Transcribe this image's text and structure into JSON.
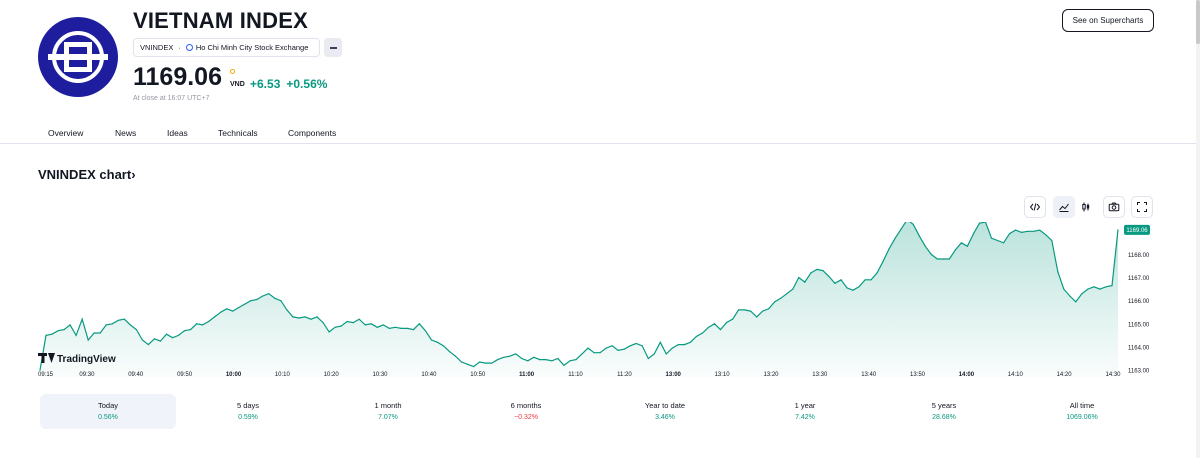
{
  "header": {
    "title": "VIETNAM INDEX",
    "symbol": "VNINDEX",
    "separator": "·",
    "exchange": "Ho Chi Minh City Stock Exchange",
    "price": "1169.06",
    "currency": "VND",
    "change_abs": "+6.53",
    "change_pct": "+0.56%",
    "close_time": "At close at 16:07 UTC+7",
    "logo_icon": "hose-logo-icon",
    "supercharts_label": "See on Supercharts"
  },
  "tabs": [
    {
      "label": "Overview",
      "active": true
    },
    {
      "label": "News",
      "active": false
    },
    {
      "label": "Ideas",
      "active": false
    },
    {
      "label": "Technicals",
      "active": false
    },
    {
      "label": "Components",
      "active": false
    }
  ],
  "chart_section": {
    "title": "VNINDEX chart",
    "arrow": "›",
    "watermark": "TradingView",
    "tools": [
      "embed-code-icon",
      "line-chart-icon",
      "candles-icon",
      "camera-icon",
      "fullscreen-icon"
    ]
  },
  "colors": {
    "accent": "#2962ff",
    "positive": "#089981",
    "negative": "#f23645",
    "logo_bg": "#1d1d9e"
  },
  "chart_data": {
    "type": "area",
    "title": "",
    "xlabel": "",
    "ylabel": "",
    "x_ticks": [
      "09:15",
      "09:30",
      "09:40",
      "09:50",
      "10:00",
      "10:10",
      "10:20",
      "10:30",
      "10:40",
      "10:50",
      "11:00",
      "11:10",
      "11:20",
      "13:00",
      "13:10",
      "13:20",
      "13:30",
      "13:40",
      "13:50",
      "14:00",
      "14:10",
      "14:20",
      "14:30"
    ],
    "y_ticks": [
      "1163.00",
      "1164.00",
      "1165.00",
      "1166.00",
      "1167.00",
      "1168.00"
    ],
    "ylim": [
      1162.7,
      1169.4
    ],
    "last_value_label": "1169.06",
    "series": [
      {
        "values": [
          1163.0,
          1164.5,
          1164.55,
          1164.7,
          1164.75,
          1164.95,
          1164.5,
          1165.2,
          1164.3,
          1164.6,
          1164.6,
          1164.95,
          1165.0,
          1165.15,
          1165.2,
          1164.95,
          1164.75,
          1164.3,
          1164.1,
          1164.35,
          1164.25,
          1164.55,
          1164.4,
          1164.5,
          1164.7,
          1164.75,
          1165.0,
          1164.95,
          1165.1,
          1165.3,
          1165.5,
          1165.65,
          1165.55,
          1165.7,
          1165.85,
          1166.0,
          1166.05,
          1166.2,
          1166.3,
          1166.1,
          1166.0,
          1165.6,
          1165.3,
          1165.25,
          1165.3,
          1165.2,
          1165.3,
          1165.05,
          1164.65,
          1164.85,
          1164.9,
          1165.1,
          1165.05,
          1165.2,
          1164.95,
          1165.0,
          1164.85,
          1164.95,
          1164.8,
          1164.85,
          1164.8,
          1164.8,
          1164.75,
          1165.0,
          1164.7,
          1164.3,
          1164.2,
          1164.05,
          1163.8,
          1163.6,
          1163.35,
          1163.25,
          1163.15,
          1163.35,
          1163.3,
          1163.3,
          1163.45,
          1163.55,
          1163.6,
          1163.7,
          1163.5,
          1163.4,
          1163.55,
          1163.45,
          1163.45,
          1163.4,
          1163.5,
          1163.2,
          1163.4,
          1163.45,
          1163.7,
          1163.95,
          1163.75,
          1163.75,
          1163.95,
          1164.05,
          1163.85,
          1163.9,
          1164.05,
          1164.15,
          1164.05,
          1163.5,
          1163.7,
          1164.2,
          1163.7,
          1163.95,
          1164.1,
          1164.1,
          1164.2,
          1164.45,
          1164.6,
          1164.85,
          1165.0,
          1164.75,
          1165.05,
          1165.2,
          1165.6,
          1165.6,
          1165.55,
          1165.3,
          1165.55,
          1165.65,
          1165.95,
          1166.1,
          1166.3,
          1166.5,
          1167.0,
          1166.8,
          1167.2,
          1167.35,
          1167.3,
          1167.05,
          1166.75,
          1166.9,
          1166.55,
          1166.45,
          1166.6,
          1166.9,
          1166.9,
          1167.2,
          1167.7,
          1168.25,
          1168.7,
          1169.1,
          1169.5,
          1169.3,
          1168.8,
          1168.35,
          1168.0,
          1167.8,
          1167.8,
          1167.8,
          1168.2,
          1168.5,
          1168.35,
          1168.9,
          1169.35,
          1169.4,
          1168.7,
          1168.6,
          1168.5,
          1168.9,
          1169.05,
          1168.95,
          1169.0,
          1169.0,
          1169.05,
          1168.85,
          1168.6,
          1167.25,
          1166.5,
          1166.2,
          1165.95,
          1166.3,
          1166.5,
          1166.6,
          1166.5,
          1166.6,
          1166.65,
          1169.06
        ]
      }
    ]
  },
  "ranges": [
    {
      "label": "Today",
      "value": "0.56%",
      "direction": "positive",
      "active": true
    },
    {
      "label": "5 days",
      "value": "0.59%",
      "direction": "positive",
      "active": false
    },
    {
      "label": "1 month",
      "value": "7.07%",
      "direction": "positive",
      "active": false
    },
    {
      "label": "6 months",
      "value": "−0.32%",
      "direction": "negative",
      "active": false
    },
    {
      "label": "Year to date",
      "value": "3.46%",
      "direction": "positive",
      "active": false
    },
    {
      "label": "1 year",
      "value": "7.42%",
      "direction": "positive",
      "active": false
    },
    {
      "label": "5 years",
      "value": "28.68%",
      "direction": "positive",
      "active": false
    },
    {
      "label": "All time",
      "value": "1069.06%",
      "direction": "positive",
      "active": false
    }
  ]
}
